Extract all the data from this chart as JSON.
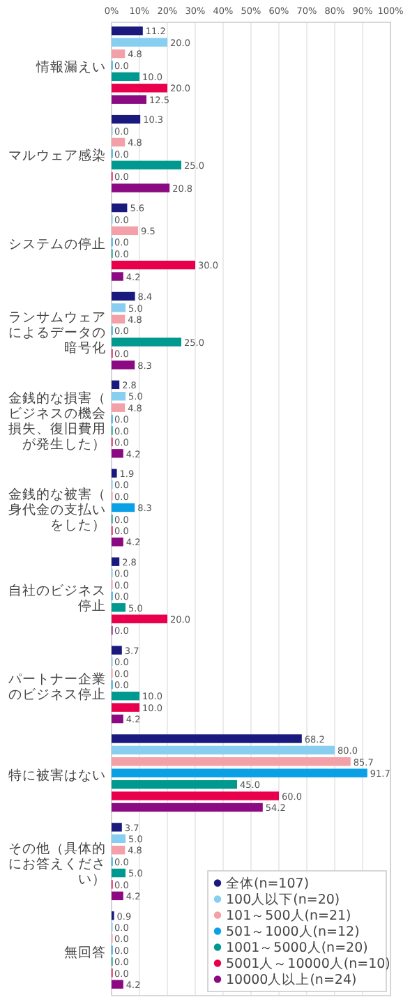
{
  "chart_data": {
    "type": "bar",
    "orientation": "horizontal",
    "categories": [
      "情報漏えい",
      "マルウェア感染",
      "システムの停止",
      "ランサムウェアによるデータの暗号化",
      "金銭的な損害（ビジネスの機会損失、復旧費用が発生した）",
      "金銭的な被害（身代金の支払いをした）",
      "自社のビジネス停止",
      "パートナー企業のビジネス停止",
      "特に被害はない",
      "その他（具体的にお答えください）",
      "無回答"
    ],
    "series": [
      {
        "name": "全体(n=107)",
        "color": "#1a1a7e",
        "values": [
          11.2,
          10.3,
          5.6,
          8.4,
          2.8,
          1.9,
          2.8,
          3.7,
          68.2,
          3.7,
          0.9
        ],
        "value_labels": [
          "11.2",
          "10.3",
          "5.6",
          "8.4",
          "2.8",
          "1.9",
          "2.8",
          "3.7",
          "68.2",
          "3.7",
          "0.9"
        ]
      },
      {
        "name": "100人以下(n=20)",
        "color": "#87cef0",
        "values": [
          20,
          0,
          0,
          5,
          5,
          0,
          0,
          0,
          80,
          5,
          0
        ],
        "value_labels": [
          "20.0",
          "0.0",
          "0.0",
          "5.0",
          "5.0",
          "0.0",
          "0.0",
          "0.0",
          "80.0",
          "5.0",
          "0.0"
        ]
      },
      {
        "name": "101～500人(n=21)",
        "color": "#f4a0a8",
        "values": [
          4.8,
          4.8,
          9.5,
          4.8,
          4.8,
          0,
          0,
          0,
          85.7,
          4.8,
          0
        ],
        "value_labels": [
          "4.8",
          "4.8",
          "9.5",
          "4.8",
          "4.8",
          "0.0",
          "0.0",
          "0.0",
          "85.7",
          "4.8",
          "0.0"
        ]
      },
      {
        "name": "501～1000人(n=12)",
        "color": "#0aa0e6",
        "values": [
          0,
          0,
          0,
          0,
          0,
          8.3,
          0,
          0,
          91.7,
          0,
          0
        ],
        "value_labels": [
          "0.0",
          "0.0",
          "0.0",
          "0.0",
          "0.0",
          "8.3",
          "0.0",
          "0.0",
          "91.7",
          "0.0",
          "0.0"
        ]
      },
      {
        "name": "1001～5000人(n=20)",
        "color": "#009990",
        "values": [
          10,
          25,
          0,
          25,
          0,
          0,
          5,
          10,
          45,
          5,
          0
        ],
        "value_labels": [
          "10.0",
          "25.0",
          "0.0",
          "25.0",
          "0.0",
          "0.0",
          "5.0",
          "10.0",
          "45.0",
          "5.0",
          "0.0"
        ]
      },
      {
        "name": "5001人～10000人(n=10)",
        "color": "#e8004c",
        "values": [
          20,
          0,
          30,
          0,
          0,
          0,
          20,
          10,
          60,
          0,
          0
        ],
        "value_labels": [
          "20.0",
          "0.0",
          "30.0",
          "0.0",
          "0.0",
          "0.0",
          "20.0",
          "10.0",
          "60.0",
          "0.0",
          "0.0"
        ]
      },
      {
        "name": "10000人以上(n=24)",
        "color": "#8b0a82",
        "values": [
          12.5,
          20.8,
          4.2,
          8.3,
          4.2,
          4.2,
          0,
          4.2,
          54.2,
          4.2,
          4.2
        ],
        "value_labels": [
          "12.5",
          "20.8",
          "4.2",
          "8.3",
          "4.2",
          "4.2",
          "0.0",
          "4.2",
          "54.2",
          "4.2",
          "4.2"
        ]
      }
    ],
    "xlim": [
      0,
      100
    ],
    "xticks": [
      {
        "value": 0,
        "label": "0%"
      },
      {
        "value": 10,
        "label": "10%"
      },
      {
        "value": 20,
        "label": "20%"
      },
      {
        "value": 30,
        "label": "30%"
      },
      {
        "value": 40,
        "label": "40%"
      },
      {
        "value": 50,
        "label": "50%"
      },
      {
        "value": 60,
        "label": "60%"
      },
      {
        "value": 70,
        "label": "70%"
      },
      {
        "value": 80,
        "label": "80%"
      },
      {
        "value": 90,
        "label": "90%"
      },
      {
        "value": 100,
        "label": "100%"
      }
    ],
    "grid": "x",
    "legend": "bottom right"
  }
}
